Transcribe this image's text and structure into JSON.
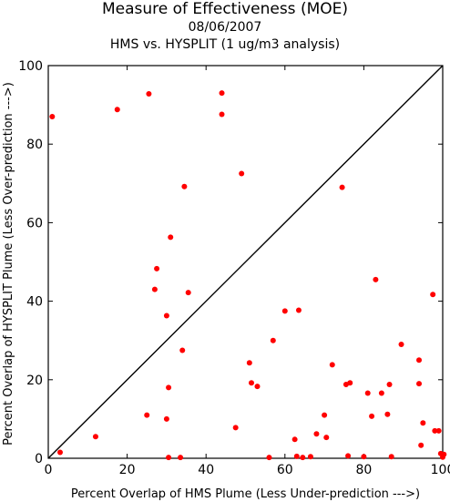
{
  "chart_data": {
    "type": "scatter",
    "title": "Measure of Effectiveness (MOE)",
    "subtitle": "08/06/2007",
    "subtitle2": "HMS vs. HYSPLIT  (1 ug/m3 analysis)",
    "xlabel": "Percent Overlap of HMS Plume (Less Under-prediction --->)",
    "ylabel": "Percent Overlap of HYSPLIT Plume (Less Over-prediction --->)",
    "xlim": [
      0,
      100
    ],
    "ylim": [
      0,
      100
    ],
    "xticks": [
      "0",
      "20",
      "40",
      "60",
      "80",
      "100"
    ],
    "yticks": [
      "0",
      "20",
      "40",
      "60",
      "80",
      "100"
    ],
    "reference_line": "y = x",
    "marker_color": "#ff0000",
    "line_color": "#000000",
    "points": [
      {
        "x": 1,
        "y": 87
      },
      {
        "x": 3,
        "y": 1.5
      },
      {
        "x": 12,
        "y": 5.5
      },
      {
        "x": 17.5,
        "y": 88.8
      },
      {
        "x": 25,
        "y": 11
      },
      {
        "x": 25.5,
        "y": 92.8
      },
      {
        "x": 27,
        "y": 43
      },
      {
        "x": 27.5,
        "y": 48.3
      },
      {
        "x": 30,
        "y": 10
      },
      {
        "x": 30,
        "y": 36.3
      },
      {
        "x": 30.5,
        "y": 18
      },
      {
        "x": 30.5,
        "y": 0.2
      },
      {
        "x": 31,
        "y": 56.3
      },
      {
        "x": 33.5,
        "y": 0.2
      },
      {
        "x": 34,
        "y": 27.5
      },
      {
        "x": 34.5,
        "y": 69.2
      },
      {
        "x": 35.5,
        "y": 42.2
      },
      {
        "x": 44,
        "y": 93
      },
      {
        "x": 44,
        "y": 87.6
      },
      {
        "x": 47.5,
        "y": 7.8
      },
      {
        "x": 49,
        "y": 72.5
      },
      {
        "x": 51,
        "y": 24.3
      },
      {
        "x": 51.5,
        "y": 19.2
      },
      {
        "x": 53,
        "y": 18.3
      },
      {
        "x": 56,
        "y": 0.2
      },
      {
        "x": 57,
        "y": 30
      },
      {
        "x": 60,
        "y": 37.5
      },
      {
        "x": 62.5,
        "y": 4.8
      },
      {
        "x": 63,
        "y": 0.5
      },
      {
        "x": 63.5,
        "y": 37.7
      },
      {
        "x": 64.5,
        "y": 0.2
      },
      {
        "x": 66.5,
        "y": 0.4
      },
      {
        "x": 68,
        "y": 6.2
      },
      {
        "x": 70,
        "y": 11
      },
      {
        "x": 70.5,
        "y": 5.3
      },
      {
        "x": 72,
        "y": 23.8
      },
      {
        "x": 74.5,
        "y": 69
      },
      {
        "x": 75.5,
        "y": 18.8
      },
      {
        "x": 76,
        "y": 0.6
      },
      {
        "x": 76.5,
        "y": 19.2
      },
      {
        "x": 80,
        "y": 0.4
      },
      {
        "x": 81,
        "y": 16.6
      },
      {
        "x": 82,
        "y": 10.7
      },
      {
        "x": 83,
        "y": 45.5
      },
      {
        "x": 84.5,
        "y": 16.6
      },
      {
        "x": 86,
        "y": 11.2
      },
      {
        "x": 86.5,
        "y": 18.8
      },
      {
        "x": 87,
        "y": 0.4
      },
      {
        "x": 89.5,
        "y": 29
      },
      {
        "x": 94,
        "y": 25
      },
      {
        "x": 94,
        "y": 19
      },
      {
        "x": 94.5,
        "y": 3.3
      },
      {
        "x": 95,
        "y": 9
      },
      {
        "x": 97.5,
        "y": 41.7
      },
      {
        "x": 98,
        "y": 7
      },
      {
        "x": 99,
        "y": 7
      },
      {
        "x": 99.5,
        "y": 1.2
      },
      {
        "x": 100,
        "y": 0.3
      },
      {
        "x": 100.3,
        "y": 1
      }
    ]
  }
}
